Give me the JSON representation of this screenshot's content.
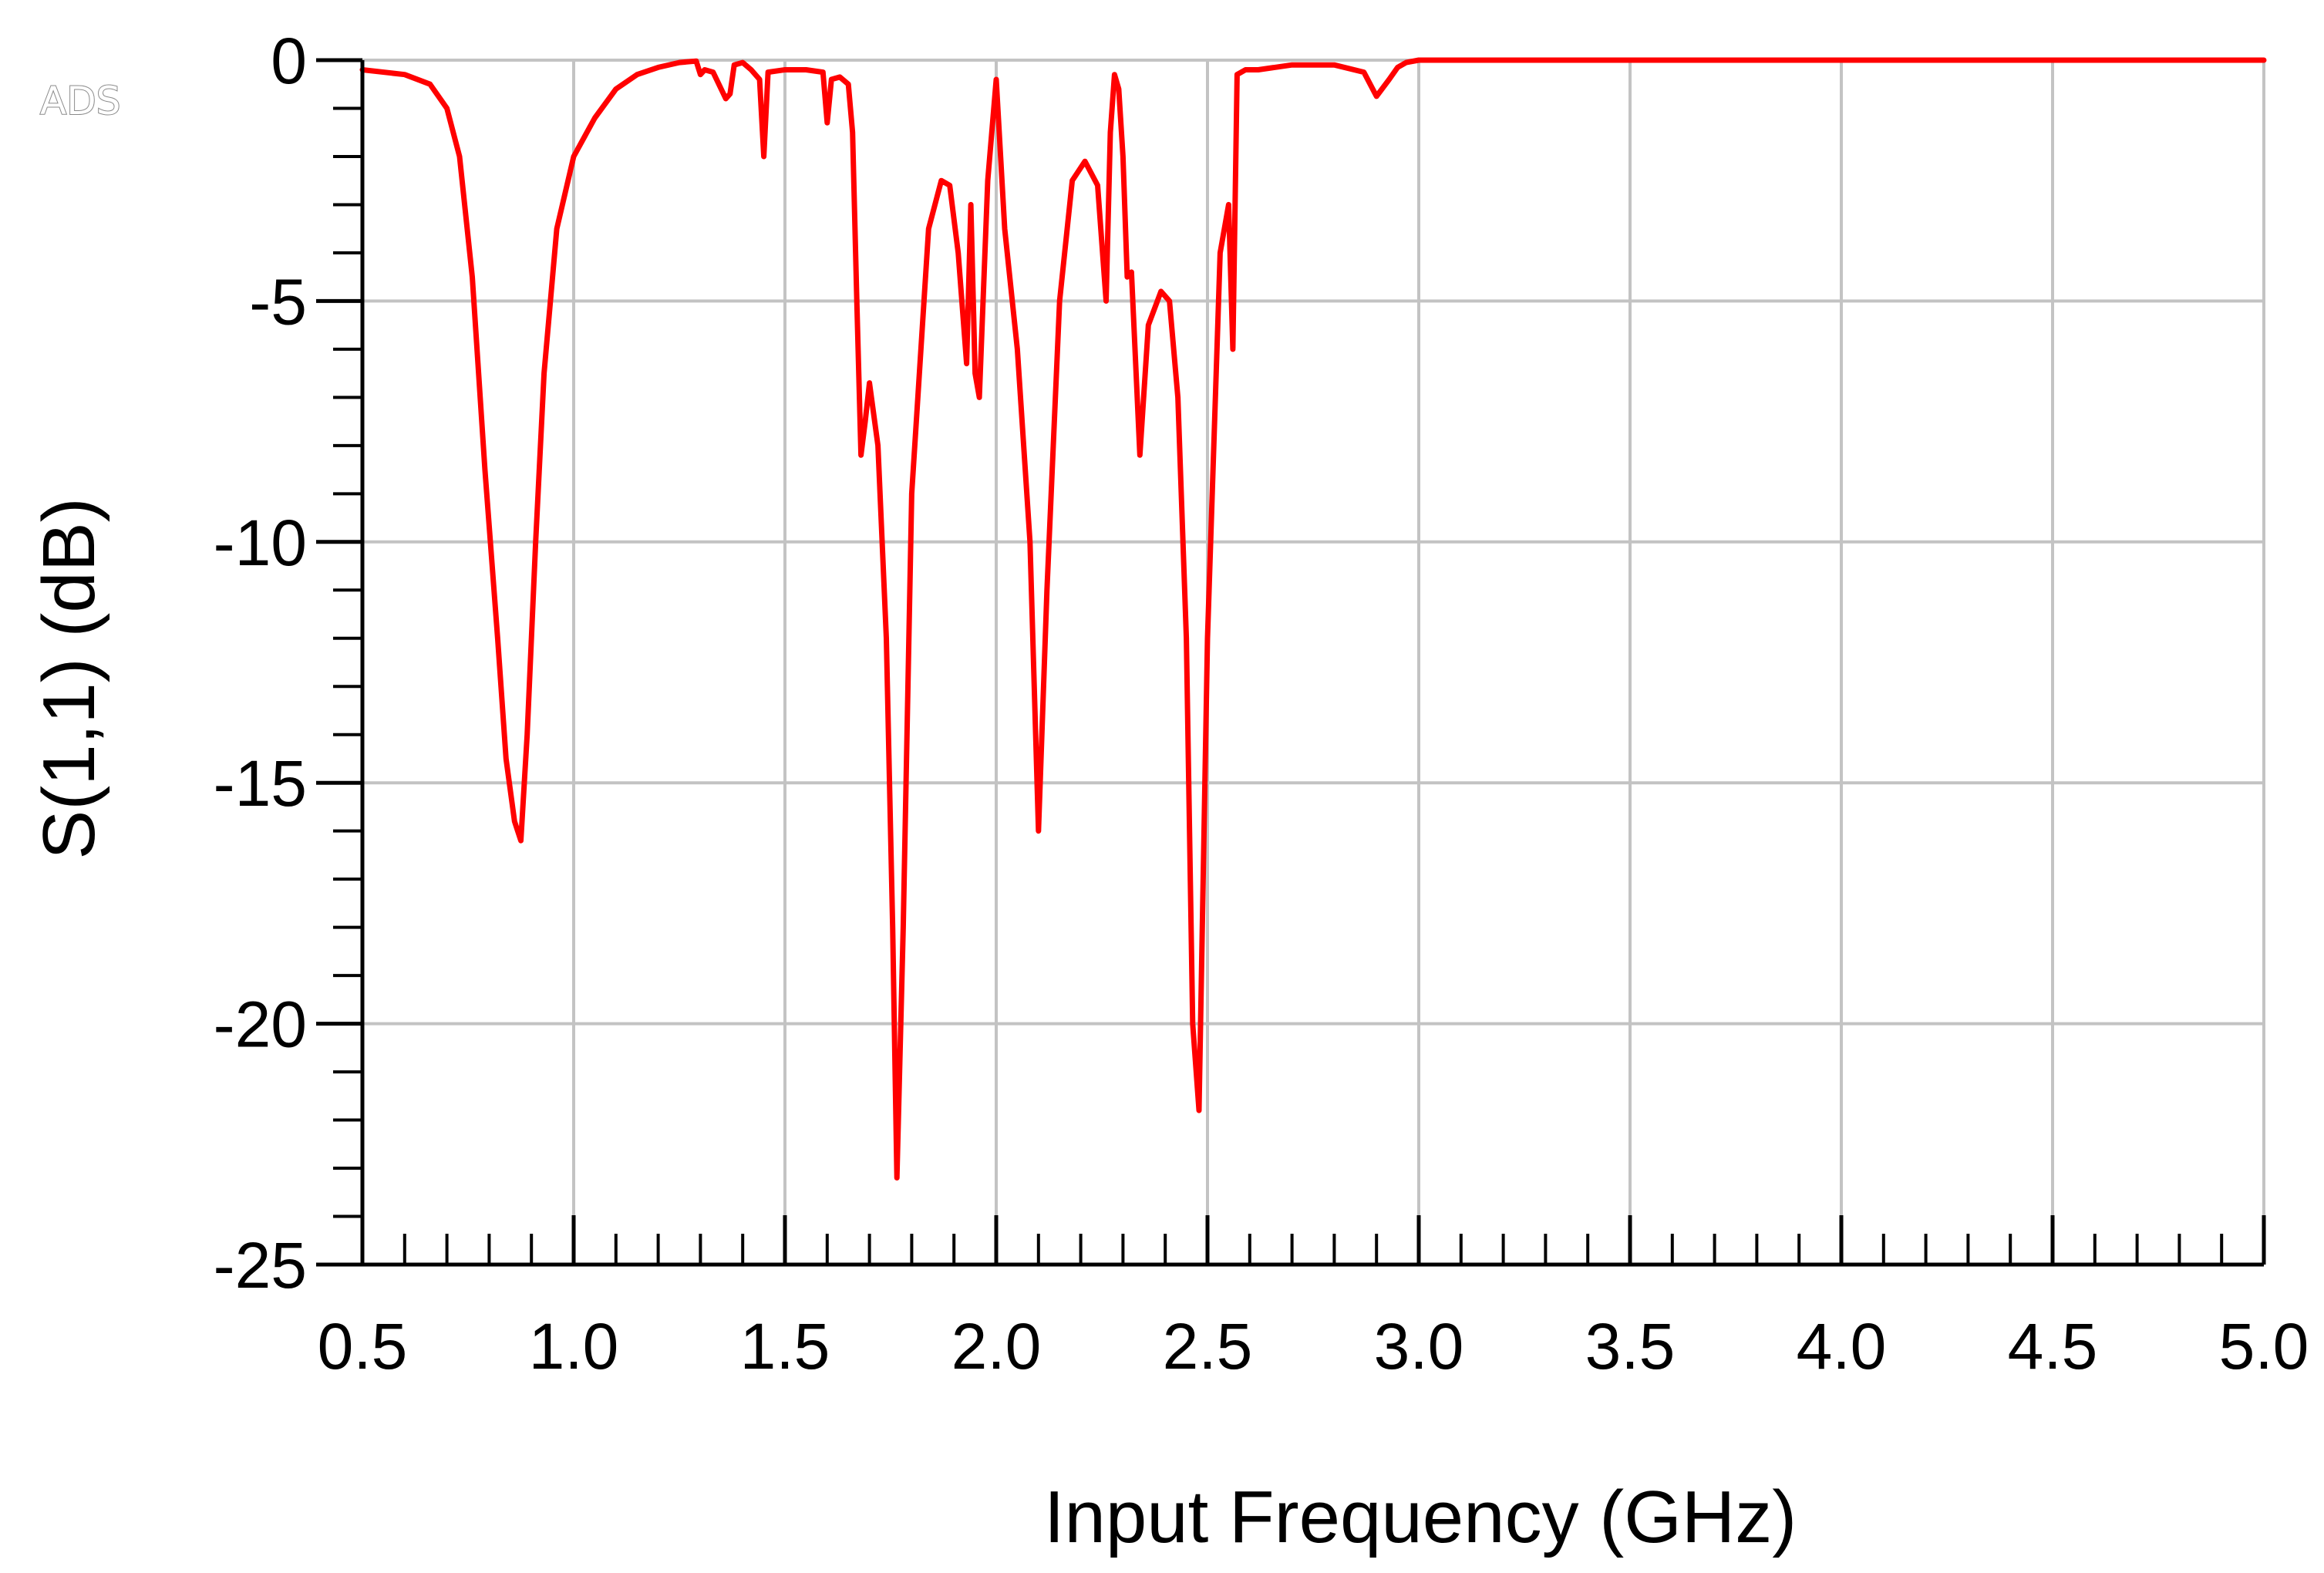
{
  "brand": {
    "label": "ADS"
  },
  "chart_data": {
    "type": "line",
    "xlabel": "Input Frequency (GHz)",
    "ylabel": "S(1,1) (dB)",
    "xlim": [
      0.5,
      5.0
    ],
    "ylim": [
      -25,
      0
    ],
    "xticks": [
      "0.5",
      "1.0",
      "1.5",
      "2.0",
      "2.5",
      "3.0",
      "3.5",
      "4.0",
      "4.5",
      "5.0"
    ],
    "xtick_values": [
      0.5,
      1.0,
      1.5,
      2.0,
      2.5,
      3.0,
      3.5,
      4.0,
      4.5,
      5.0
    ],
    "yticks": [
      "0",
      "-5",
      "-10",
      "-15",
      "-20",
      "-25"
    ],
    "ytick_values": [
      0,
      -5,
      -10,
      -15,
      -20,
      -25
    ],
    "grid": true,
    "series": [
      {
        "color": "#ff0000",
        "x": [
          0.5,
          0.6,
          0.66,
          0.7,
          0.73,
          0.76,
          0.79,
          0.82,
          0.84,
          0.86,
          0.875,
          0.89,
          0.91,
          0.93,
          0.96,
          1.0,
          1.05,
          1.1,
          1.15,
          1.2,
          1.25,
          1.29,
          1.3,
          1.31,
          1.33,
          1.36,
          1.37,
          1.38,
          1.4,
          1.42,
          1.44,
          1.45,
          1.46,
          1.5,
          1.55,
          1.59,
          1.6,
          1.61,
          1.63,
          1.65,
          1.66,
          1.67,
          1.68,
          1.69,
          1.7,
          1.72,
          1.74,
          1.755,
          1.765,
          1.78,
          1.8,
          1.84,
          1.87,
          1.89,
          1.91,
          1.93,
          1.94,
          1.95,
          1.96,
          1.98,
          2.0,
          2.02,
          2.05,
          2.08,
          2.1,
          2.12,
          2.15,
          2.18,
          2.21,
          2.24,
          2.26,
          2.27,
          2.28,
          2.29,
          2.3,
          2.31,
          2.32,
          2.34,
          2.36,
          2.39,
          2.41,
          2.43,
          2.45,
          2.465,
          2.48,
          2.5,
          2.53,
          2.55,
          2.56,
          2.57,
          2.59,
          2.62,
          2.7,
          2.8,
          2.87,
          2.9,
          2.93,
          2.95,
          2.97,
          3.0,
          3.5,
          4.0,
          4.5,
          5.0
        ],
        "y": [
          -0.2,
          -0.3,
          -0.5,
          -1.0,
          -2.0,
          -4.5,
          -8.5,
          -12.0,
          -14.5,
          -15.8,
          -16.2,
          -14.0,
          -10.0,
          -6.5,
          -3.5,
          -2.0,
          -1.2,
          -0.6,
          -0.3,
          -0.15,
          -0.05,
          -0.02,
          -0.3,
          -0.2,
          -0.25,
          -0.8,
          -0.7,
          -0.1,
          -0.05,
          -0.2,
          -0.4,
          -2.0,
          -0.25,
          -0.2,
          -0.2,
          -0.25,
          -1.3,
          -0.4,
          -0.35,
          -0.5,
          -1.5,
          -5.0,
          -8.2,
          -7.5,
          -6.7,
          -8.0,
          -12.0,
          -18.0,
          -23.2,
          -18.0,
          -9.0,
          -3.5,
          -2.5,
          -2.6,
          -4.0,
          -6.3,
          -3.0,
          -6.5,
          -7.0,
          -2.5,
          -0.4,
          -3.5,
          -6.0,
          -10.0,
          -16.0,
          -11.0,
          -5.0,
          -2.5,
          -2.1,
          -2.6,
          -5.0,
          -1.5,
          -0.3,
          -0.6,
          -2.0,
          -4.5,
          -4.4,
          -8.2,
          -5.5,
          -4.8,
          -5.0,
          -7.0,
          -12.0,
          -20.0,
          -21.8,
          -12.0,
          -4.0,
          -3.0,
          -6.0,
          -0.3,
          -0.2,
          -0.2,
          -0.1,
          -0.1,
          -0.25,
          -0.75,
          -0.4,
          -0.15,
          -0.05,
          0.0,
          0.0,
          0.0,
          0.0,
          0.0
        ]
      }
    ]
  }
}
